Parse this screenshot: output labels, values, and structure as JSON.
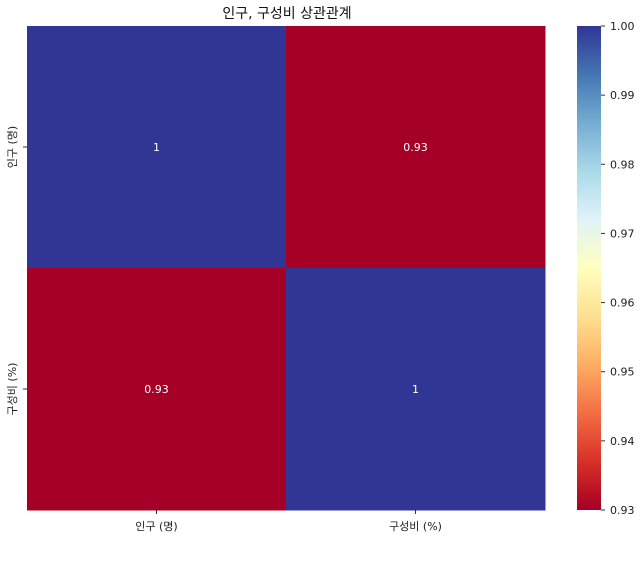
{
  "chart_data": {
    "type": "heatmap",
    "title": "인구, 구성비 상관관계",
    "row_labels": [
      "인구 (명)",
      "구성비 (%)"
    ],
    "col_labels": [
      "인구 (명)",
      "구성비 (%)"
    ],
    "values": [
      [
        1,
        0.93
      ],
      [
        0.93,
        1
      ]
    ],
    "cell_text": [
      [
        "1",
        "0.93"
      ],
      [
        "0.93",
        "1"
      ]
    ],
    "colorbar": {
      "min": 0.93,
      "max": 1.0,
      "ticks": [
        "0.93",
        "0.94",
        "0.95",
        "0.96",
        "0.97",
        "0.98",
        "0.99",
        "1.00"
      ],
      "colormap": "RdYlBu",
      "stops": [
        "#a50026",
        "#d73027",
        "#f46d43",
        "#fdae61",
        "#fee090",
        "#ffffbf",
        "#e0f3f8",
        "#abd9e9",
        "#74add1",
        "#4575b4",
        "#313695"
      ]
    },
    "annotation_color": "#ffffff"
  }
}
